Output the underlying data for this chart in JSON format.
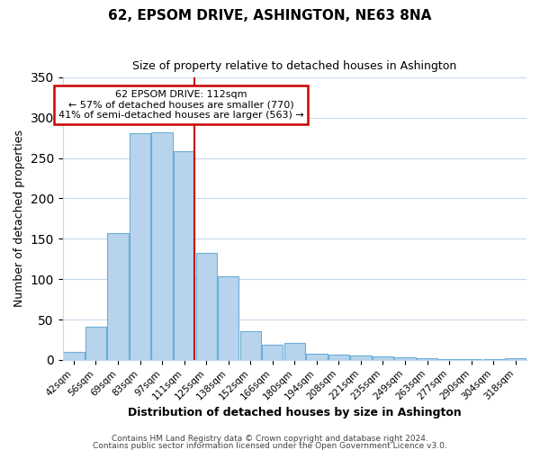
{
  "title": "62, EPSOM DRIVE, ASHINGTON, NE63 8NA",
  "subtitle": "Size of property relative to detached houses in Ashington",
  "xlabel": "Distribution of detached houses by size in Ashington",
  "ylabel": "Number of detached properties",
  "bar_labels": [
    "42sqm",
    "56sqm",
    "69sqm",
    "83sqm",
    "97sqm",
    "111sqm",
    "125sqm",
    "138sqm",
    "152sqm",
    "166sqm",
    "180sqm",
    "194sqm",
    "208sqm",
    "221sqm",
    "235sqm",
    "249sqm",
    "263sqm",
    "277sqm",
    "290sqm",
    "304sqm",
    "318sqm"
  ],
  "bar_heights": [
    10,
    41,
    157,
    281,
    282,
    258,
    133,
    103,
    35,
    19,
    21,
    8,
    6,
    5,
    4,
    3,
    2,
    1,
    1,
    1,
    2
  ],
  "bar_color": "#b8d4ed",
  "bar_edge_color": "#6baed6",
  "marker_bar_index": 5,
  "marker_label": "62 EPSOM DRIVE: 112sqm",
  "annotation_line1": "← 57% of detached houses are smaller (770)",
  "annotation_line2": "41% of semi-detached houses are larger (563) →",
  "marker_line_color": "#cc0000",
  "box_edge_color": "#cc0000",
  "ylim": [
    0,
    350
  ],
  "yticks": [
    0,
    50,
    100,
    150,
    200,
    250,
    300,
    350
  ],
  "footer1": "Contains HM Land Registry data © Crown copyright and database right 2024.",
  "footer2": "Contains public sector information licensed under the Open Government Licence v3.0.",
  "background_color": "#ffffff",
  "grid_color": "#c8d8e8"
}
